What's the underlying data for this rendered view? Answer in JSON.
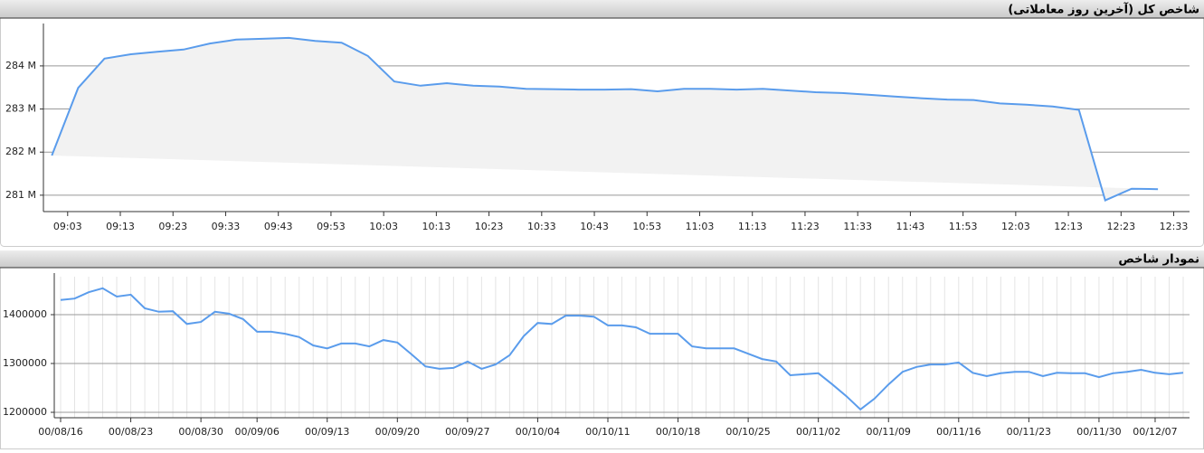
{
  "chart_data": [
    {
      "type": "area",
      "title": "شاخص کل (آخرین روز معاملاتی)",
      "color": "#5a9cec",
      "fill": "#f2f2f2",
      "grid": true,
      "x": [
        540,
        545,
        550,
        555,
        560,
        565,
        570,
        575,
        580,
        585,
        590,
        595,
        600,
        605,
        610,
        615,
        620,
        625,
        630,
        635,
        640,
        645,
        650,
        655,
        660,
        665,
        670,
        675,
        680,
        685,
        690,
        695,
        700,
        705,
        710,
        715,
        720,
        725,
        730,
        735,
        740,
        745,
        750
      ],
      "values": [
        281920000,
        283490000,
        284170000,
        284270000,
        284330000,
        284380000,
        284520000,
        284610000,
        284630000,
        284650000,
        284580000,
        284540000,
        284230000,
        283640000,
        283540000,
        283600000,
        283540000,
        283520000,
        283470000,
        283460000,
        283450000,
        283450000,
        283460000,
        283410000,
        283470000,
        283470000,
        283450000,
        283470000,
        283430000,
        283390000,
        283370000,
        283330000,
        283290000,
        283250000,
        283220000,
        283210000,
        283130000,
        283100000,
        283060000,
        282980000,
        280880000,
        281150000,
        281140000
      ],
      "xlim": [
        538.4,
        756
      ],
      "xticks": [
        {
          "value": 543,
          "label": "09:03"
        },
        {
          "value": 553,
          "label": "09:13"
        },
        {
          "value": 563,
          "label": "09:23"
        },
        {
          "value": 573,
          "label": "09:33"
        },
        {
          "value": 583,
          "label": "09:43"
        },
        {
          "value": 593,
          "label": "09:53"
        },
        {
          "value": 603,
          "label": "10:03"
        },
        {
          "value": 613,
          "label": "10:13"
        },
        {
          "value": 623,
          "label": "10:23"
        },
        {
          "value": 633,
          "label": "10:33"
        },
        {
          "value": 643,
          "label": "10:43"
        },
        {
          "value": 653,
          "label": "10:53"
        },
        {
          "value": 663,
          "label": "11:03"
        },
        {
          "value": 673,
          "label": "11:13"
        },
        {
          "value": 683,
          "label": "11:23"
        },
        {
          "value": 693,
          "label": "11:33"
        },
        {
          "value": 703,
          "label": "11:43"
        },
        {
          "value": 713,
          "label": "11:53"
        },
        {
          "value": 723,
          "label": "12:03"
        },
        {
          "value": 733,
          "label": "12:13"
        },
        {
          "value": 743,
          "label": "12:23"
        },
        {
          "value": 753,
          "label": "12:33"
        }
      ],
      "ylim": [
        280620000,
        284900000
      ],
      "yticks": [
        {
          "value": 281000000,
          "label": "281 M"
        },
        {
          "value": 282000000,
          "label": "282 M"
        },
        {
          "value": 283000000,
          "label": "283 M"
        },
        {
          "value": 284000000,
          "label": "284 M"
        }
      ]
    },
    {
      "type": "line",
      "title": "نمودار شاخص",
      "color": "#5a9cec",
      "grid": true,
      "categories": [
        "00/08/16",
        null,
        null,
        null,
        null,
        "00/08/23",
        null,
        null,
        null,
        null,
        "00/08/30",
        null,
        null,
        null,
        "00/09/06",
        null,
        null,
        null,
        null,
        "00/09/13",
        null,
        null,
        null,
        null,
        "00/09/20",
        null,
        null,
        null,
        null,
        "00/09/27",
        null,
        null,
        null,
        null,
        "00/10/04",
        null,
        null,
        null,
        null,
        "00/10/11",
        null,
        null,
        null,
        null,
        "00/10/18",
        null,
        null,
        null,
        null,
        "00/10/25",
        null,
        null,
        null,
        null,
        "00/11/02",
        null,
        null,
        null,
        null,
        "00/11/09",
        null,
        null,
        null,
        null,
        "00/11/16",
        null,
        null,
        null,
        null,
        "00/11/23",
        null,
        null,
        null,
        null,
        "00/11/30",
        null,
        null,
        null,
        "00/12/07",
        null,
        null
      ],
      "values": [
        1430000,
        1433000,
        1446000,
        1454000,
        1437000,
        1441000,
        1413000,
        1406000,
        1407000,
        1381000,
        1385000,
        1406000,
        1402000,
        1391000,
        1365000,
        1365000,
        1361000,
        1354000,
        1337000,
        1331000,
        1341000,
        1341000,
        1335000,
        1348000,
        1343000,
        1319000,
        1294000,
        1289000,
        1291000,
        1304000,
        1289000,
        1298000,
        1317000,
        1356000,
        1383000,
        1381000,
        1398000,
        1398000,
        1396000,
        1378000,
        1378000,
        1374000,
        1361000,
        1361000,
        1361000,
        1335000,
        1331000,
        1331000,
        1331000,
        1320000,
        1309000,
        1304000,
        1276000,
        1278000,
        1280000,
        1257000,
        1233000,
        1206000,
        1228000,
        1257000,
        1283000,
        1293000,
        1298000,
        1298000,
        1302000,
        1281000,
        1274000,
        1280000,
        1283000,
        1283000,
        1274000,
        1281000,
        1280000,
        1280000,
        1272000,
        1280000,
        1283000,
        1287000,
        1281000,
        1278000,
        1281000
      ],
      "ylim": [
        1188889,
        1477778
      ],
      "yticks": [
        1200000,
        1300000,
        1400000
      ]
    }
  ]
}
